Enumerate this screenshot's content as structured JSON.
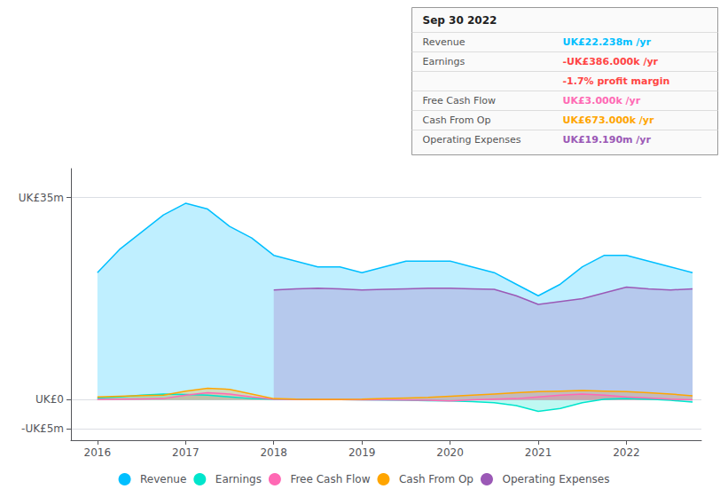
{
  "chart_data": {
    "type": "area",
    "x": [
      2016.0,
      2016.25,
      2016.5,
      2016.75,
      2017.0,
      2017.25,
      2017.5,
      2017.75,
      2018.0,
      2018.25,
      2018.5,
      2018.75,
      2019.0,
      2019.25,
      2019.5,
      2019.75,
      2020.0,
      2020.25,
      2020.5,
      2020.75,
      2021.0,
      2021.25,
      2021.5,
      2021.75,
      2022.0,
      2022.25,
      2022.5,
      2022.75
    ],
    "xlim": [
      2015.7,
      2022.85
    ],
    "xticks": [
      2016,
      2017,
      2018,
      2019,
      2020,
      2021,
      2022
    ],
    "ylim": [
      -7,
      40
    ],
    "yticks": [
      {
        "value": -5,
        "label": "-UK£5m"
      },
      {
        "value": 0,
        "label": "UK£0"
      },
      {
        "value": 35,
        "label": "UK£35m"
      }
    ],
    "grid": true,
    "legend": "bottom",
    "series": [
      {
        "name": "Revenue",
        "color": "#00bfff",
        "values": [
          22,
          26,
          29,
          32,
          34,
          33,
          30,
          28,
          25,
          24,
          23,
          23,
          22,
          23,
          24,
          24,
          24,
          23,
          22,
          20,
          18,
          20,
          23,
          25,
          25,
          24,
          23,
          22
        ]
      },
      {
        "name": "Earnings",
        "color": "#00e5cc",
        "values": [
          0.3,
          0.5,
          0.8,
          1.0,
          0.9,
          0.8,
          0.5,
          0.2,
          0.1,
          0.1,
          0.05,
          0.02,
          0.0,
          -0.05,
          -0.1,
          -0.15,
          -0.2,
          -0.3,
          -0.5,
          -1.0,
          -2.0,
          -1.5,
          -0.5,
          0.1,
          0.2,
          0.1,
          -0.1,
          -0.386
        ]
      },
      {
        "name": "Free Cash Flow",
        "color": "#ff69b4",
        "values": [
          0.05,
          0.1,
          0.15,
          0.2,
          0.8,
          1.2,
          1.0,
          0.5,
          0.1,
          0.05,
          0.02,
          0.01,
          0.0,
          0.0,
          -0.05,
          -0.1,
          -0.2,
          0.0,
          0.1,
          0.2,
          0.5,
          0.8,
          1.0,
          0.8,
          0.5,
          0.3,
          0.1,
          0.003
        ]
      },
      {
        "name": "Cash From Op",
        "color": "#ffa500",
        "values": [
          0.5,
          0.6,
          0.7,
          0.8,
          1.5,
          2.0,
          1.8,
          1.0,
          0.2,
          0.1,
          0.05,
          0.05,
          0.1,
          0.2,
          0.3,
          0.4,
          0.6,
          0.8,
          1.0,
          1.2,
          1.4,
          1.5,
          1.6,
          1.5,
          1.4,
          1.2,
          1.0,
          0.673
        ]
      },
      {
        "name": "Operating Expenses",
        "color": "#9b59b6",
        "values": [
          null,
          null,
          null,
          null,
          null,
          null,
          null,
          null,
          19,
          19.2,
          19.3,
          19.2,
          19.0,
          19.1,
          19.2,
          19.3,
          19.3,
          19.2,
          19.1,
          18.0,
          16.5,
          17.0,
          17.5,
          18.5,
          19.5,
          19.2,
          19.0,
          19.19
        ]
      }
    ],
    "annotations": {
      "title": "Sep 30 2022",
      "rows": [
        {
          "label": "Revenue",
          "value": "UK£22.238m /yr",
          "color": "#00bfff"
        },
        {
          "label": "Earnings",
          "value": "-UK£386.000k /yr",
          "color": "#ff4444"
        },
        {
          "value": "-1.7% profit margin",
          "color": "#ff4444"
        },
        {
          "label": "Free Cash Flow",
          "value": "UK£3.000k /yr",
          "color": "#ff69b4"
        },
        {
          "label": "Cash From Op",
          "value": "UK£673.000k /yr",
          "color": "#ffa500"
        },
        {
          "label": "Operating Expenses",
          "value": "UK£19.190m /yr",
          "color": "#9b59b6"
        }
      ]
    }
  }
}
